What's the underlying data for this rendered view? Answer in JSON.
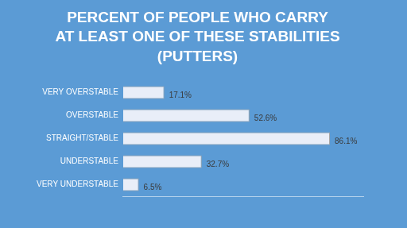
{
  "chart_data": {
    "type": "bar",
    "orientation": "horizontal",
    "title": [
      "PERCENT OF PEOPLE WHO CARRY",
      "AT LEAST ONE OF THESE STABILITIES",
      "(PUTTERS)"
    ],
    "categories": [
      "VERY OVERSTABLE",
      "OVERSTABLE",
      "STRAIGHT/STABLE",
      "UNDERSTABLE",
      "VERY UNDERSTABLE"
    ],
    "values": [
      17.1,
      52.6,
      86.1,
      32.7,
      6.5
    ],
    "value_labels": [
      "17.1%",
      "52.6%",
      "86.1%",
      "32.7%",
      "6.5%"
    ],
    "data_labels": true,
    "color": "#e9eef8",
    "xlim": [
      0,
      100
    ],
    "grid": false,
    "tick_labels": "y"
  }
}
